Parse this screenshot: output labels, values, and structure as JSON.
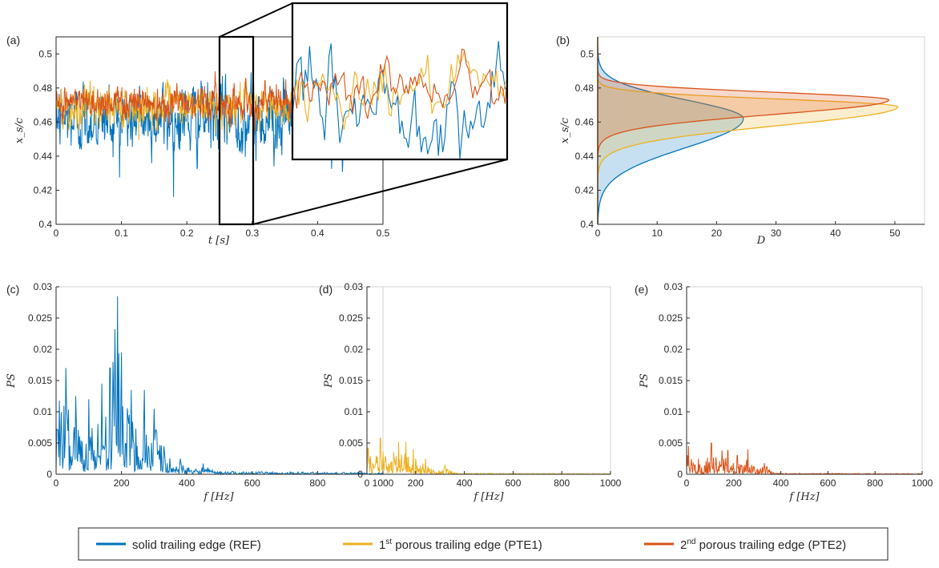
{
  "colors": {
    "REF": "#0072BD",
    "PTE1": "#EDB120",
    "PTE2": "#D95319"
  },
  "legend": {
    "items": [
      {
        "key": "REF",
        "label": "solid trailing edge (REF)",
        "sup": ""
      },
      {
        "key": "PTE1",
        "label": "1",
        "sup": "st",
        "rest": " porous trailing edge (PTE1)"
      },
      {
        "key": "PTE2",
        "label": "2",
        "sup": "nd",
        "rest": " porous trailing edge (PTE2)"
      }
    ]
  },
  "chart_data": [
    {
      "panel": "(a)",
      "type": "line",
      "xlabel": "t [s]",
      "ylabel": "x_s/c",
      "xlim": [
        0,
        0.5
      ],
      "ylim": [
        0.4,
        0.51
      ],
      "xticks": [
        "0",
        "0.1",
        "0.2",
        "0.3",
        "0.4",
        "0.5"
      ],
      "yticks": [
        "0.4",
        "0.42",
        "0.44",
        "0.46",
        "0.48",
        "0.5"
      ],
      "series": [
        {
          "key": "REF",
          "mean": 0.462,
          "std": 0.014,
          "min": 0.415,
          "max": 0.497
        },
        {
          "key": "PTE1",
          "mean": 0.469,
          "std": 0.008,
          "min": 0.43,
          "max": 0.497
        },
        {
          "key": "PTE2",
          "mean": 0.472,
          "std": 0.007,
          "min": 0.44,
          "max": 0.49
        }
      ],
      "inset": {
        "xlim": [
          0.25,
          0.3
        ],
        "ylim": [
          0.4,
          0.51
        ]
      }
    },
    {
      "panel": "(b)",
      "type": "area",
      "xlabel": "D",
      "ylabel": "x_s/c",
      "xlim": [
        0,
        55
      ],
      "ylim": [
        0.4,
        0.51
      ],
      "xticks": [
        "0",
        "10",
        "20",
        "30",
        "40",
        "50"
      ],
      "yticks": [
        "0.4",
        "0.42",
        "0.44",
        "0.46",
        "0.48",
        "0.5"
      ],
      "series": [
        {
          "key": "REF",
          "peak_value": 24.5,
          "peak_at": 0.462
        },
        {
          "key": "PTE1",
          "peak_value": 50.5,
          "peak_at": 0.469
        },
        {
          "key": "PTE2",
          "peak_value": 49.0,
          "peak_at": 0.473
        }
      ]
    },
    {
      "panel": "(c)",
      "type": "line",
      "series_key": "REF",
      "xlabel": "f [Hz]",
      "ylabel": "PS",
      "xlim": [
        0,
        1000
      ],
      "ylim": [
        0,
        0.03
      ],
      "xticks": [
        "0",
        "200",
        "400",
        "600",
        "800",
        "1000"
      ],
      "yticks": [
        "0",
        "0.005",
        "0.01",
        "0.015",
        "0.02",
        "0.025",
        "0.03"
      ],
      "peaks": [
        [
          10,
          0.0118
        ],
        [
          30,
          0.017
        ],
        [
          60,
          0.0125
        ],
        [
          100,
          0.012
        ],
        [
          140,
          0.0145
        ],
        [
          165,
          0.017
        ],
        [
          180,
          0.0232
        ],
        [
          188,
          0.0285
        ],
        [
          200,
          0.0195
        ],
        [
          230,
          0.0135
        ],
        [
          270,
          0.0135
        ],
        [
          300,
          0.0105
        ],
        [
          330,
          0.0045
        ],
        [
          380,
          0.0025
        ],
        [
          450,
          0.0017
        ]
      ]
    },
    {
      "panel": "(d)",
      "type": "line",
      "series_key": "PTE1",
      "xlabel": "f [Hz]",
      "ylabel": "PS",
      "xlim": [
        0,
        1000
      ],
      "ylim": [
        0,
        0.03
      ],
      "xticks": [
        "0",
        "200",
        "400",
        "600",
        "800",
        "1000"
      ],
      "yticks": [
        "0",
        "0.005",
        "0.01",
        "0.015",
        "0.02",
        "0.025",
        "0.03"
      ],
      "peaks": [
        [
          5,
          0.0042
        ],
        [
          55,
          0.0058
        ],
        [
          110,
          0.0035
        ],
        [
          130,
          0.0052
        ],
        [
          160,
          0.0052
        ],
        [
          190,
          0.004
        ],
        [
          240,
          0.0025
        ],
        [
          320,
          0.0015
        ]
      ]
    },
    {
      "panel": "(e)",
      "type": "line",
      "series_key": "PTE2",
      "xlabel": "f [Hz]",
      "ylabel": "PS",
      "xlim": [
        0,
        1000
      ],
      "ylim": [
        0,
        0.03
      ],
      "xticks": [
        "0",
        "200",
        "400",
        "600",
        "800",
        "1000"
      ],
      "yticks": [
        "0",
        "0.005",
        "0.01",
        "0.015",
        "0.02",
        "0.025",
        "0.03"
      ],
      "peaks": [
        [
          8,
          0.0045
        ],
        [
          50,
          0.0025
        ],
        [
          105,
          0.005
        ],
        [
          150,
          0.0038
        ],
        [
          175,
          0.0038
        ],
        [
          215,
          0.003
        ],
        [
          260,
          0.004
        ],
        [
          330,
          0.0018
        ]
      ]
    }
  ]
}
